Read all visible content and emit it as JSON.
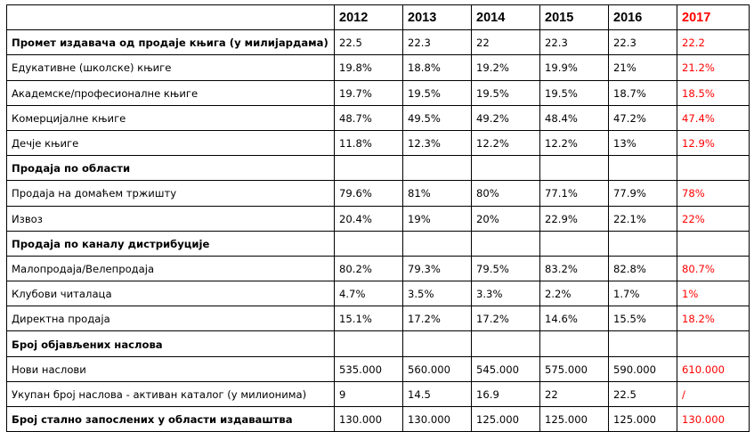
{
  "years": [
    "2012",
    "2013",
    "2014",
    "2015",
    "2016",
    "2017"
  ],
  "rows": [
    {
      "label": "Промет издавача од продаје књига (у милијардама)",
      "bold": true,
      "values": [
        "22.5",
        "22.3",
        "22",
        "22.3",
        "22.3",
        "22.2"
      ]
    },
    {
      "label": "Едукативне (школске) књиге",
      "bold": false,
      "values": [
        "19.8%",
        "18.8%",
        "19.2%",
        "19.9%",
        "21%",
        "21.2%"
      ]
    },
    {
      "label": "Академске/професионалне књиге",
      "bold": false,
      "values": [
        "19.7%",
        "19.5%",
        "19.5%",
        "19.5%",
        "18.7%",
        "18.5%"
      ]
    },
    {
      "label": "Комерцијалне књиге",
      "bold": false,
      "values": [
        "48.7%",
        "49.5%",
        "49.2%",
        "48.4%",
        "47.2%",
        "47.4%"
      ]
    },
    {
      "label": "Дечје књиге",
      "bold": false,
      "values": [
        "11.8%",
        "12.3%",
        "12.2%",
        "12.2%",
        "13%",
        "12.9%"
      ]
    },
    {
      "label": "Продаја по области",
      "bold": true,
      "values": null
    },
    {
      "label": "Продаја на домаћем тржишту",
      "bold": false,
      "values": [
        "79.6%",
        "81%",
        "80%",
        "77.1%",
        "77.9%",
        "78%"
      ]
    },
    {
      "label": "Извоз",
      "bold": false,
      "values": [
        "20.4%",
        "19%",
        "20%",
        "22.9%",
        "22.1%",
        "22%"
      ]
    },
    {
      "label": "Продаја по каналу дистрибуције",
      "bold": true,
      "values": null
    },
    {
      "label": "Малопродаја/Велепродаја",
      "bold": false,
      "values": [
        "80.2%",
        "79.3%",
        "79.5%",
        "83.2%",
        "82.8%",
        "80.7%"
      ]
    },
    {
      "label": "Клубови читалаца",
      "bold": false,
      "values": [
        "4.7%",
        "3.5%",
        "3.3%",
        "2.2%",
        "1.7%",
        "1%"
      ]
    },
    {
      "label": "Директна продаја",
      "bold": false,
      "values": [
        "15.1%",
        "17.2%",
        "17.2%",
        "14.6%",
        "15.5%",
        "18.2%"
      ]
    },
    {
      "label": "Број објављених наслова",
      "bold": true,
      "values": null
    },
    {
      "label": "Нови наслови",
      "bold": false,
      "values": [
        "535.000",
        "560.000",
        "545.000",
        "575.000",
        "590.000",
        "610.000"
      ]
    },
    {
      "label": "Укупан број наслова - активан каталог (у милионима)",
      "bold": false,
      "values": [
        "9",
        "14.5",
        "16.9",
        "22",
        "22.5",
        "/"
      ]
    },
    {
      "label": "Број стално запослених у области издаваштва",
      "bold": true,
      "values": [
        "130.000",
        "130.000",
        "125.000",
        "125.000",
        "125.000",
        "130.000"
      ]
    }
  ]
}
